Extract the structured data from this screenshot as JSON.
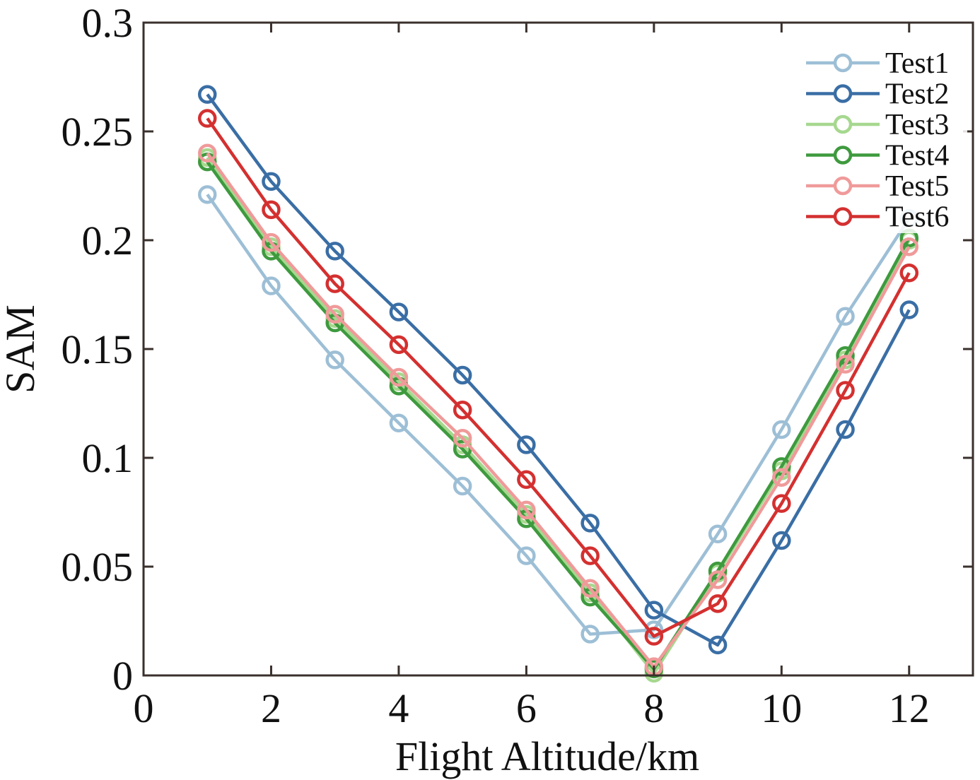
{
  "chart_data": {
    "type": "line",
    "xlabel": "Flight Altitude/km",
    "ylabel": "SAM",
    "xlim": [
      0,
      13
    ],
    "ylim": [
      0,
      0.3
    ],
    "xticks": [
      0,
      2,
      4,
      6,
      8,
      10,
      12
    ],
    "xtick_labels": [
      "0",
      "2",
      "4",
      "6",
      "8",
      "10",
      "12"
    ],
    "yticks": [
      0,
      0.05,
      0.1,
      0.15,
      0.2,
      0.25,
      0.3
    ],
    "ytick_labels": [
      "0",
      "0.05",
      "0.1",
      "0.15",
      "0.2",
      "0.25",
      "0.3"
    ],
    "grid": false,
    "legend_position": "top-right",
    "marker": "circle",
    "x": [
      1,
      2,
      3,
      4,
      5,
      6,
      7,
      8,
      9,
      10,
      11,
      12
    ],
    "series": [
      {
        "name": "Test1",
        "color": "#9dbfd6",
        "values": [
          0.221,
          0.179,
          0.145,
          0.116,
          0.087,
          0.055,
          0.019,
          0.021,
          0.065,
          0.113,
          0.165,
          0.21
        ]
      },
      {
        "name": "Test2",
        "color": "#3a6ea5",
        "values": [
          0.267,
          0.227,
          0.195,
          0.167,
          0.138,
          0.106,
          0.07,
          0.03,
          0.014,
          0.062,
          0.113,
          0.168
        ]
      },
      {
        "name": "Test3",
        "color": "#a6d88f",
        "values": [
          0.238,
          0.197,
          0.164,
          0.135,
          0.106,
          0.074,
          0.038,
          0.001,
          0.047,
          0.094,
          0.145,
          0.2
        ]
      },
      {
        "name": "Test4",
        "color": "#3e9a3e",
        "values": [
          0.236,
          0.195,
          0.162,
          0.133,
          0.104,
          0.072,
          0.036,
          0.003,
          0.048,
          0.096,
          0.147,
          0.201
        ]
      },
      {
        "name": "Test5",
        "color": "#f09a9a",
        "values": [
          0.24,
          0.199,
          0.166,
          0.137,
          0.109,
          0.076,
          0.04,
          0.004,
          0.044,
          0.091,
          0.143,
          0.197
        ]
      },
      {
        "name": "Test6",
        "color": "#d43030",
        "values": [
          0.256,
          0.214,
          0.18,
          0.152,
          0.122,
          0.09,
          0.055,
          0.018,
          0.033,
          0.079,
          0.131,
          0.185
        ]
      }
    ]
  }
}
